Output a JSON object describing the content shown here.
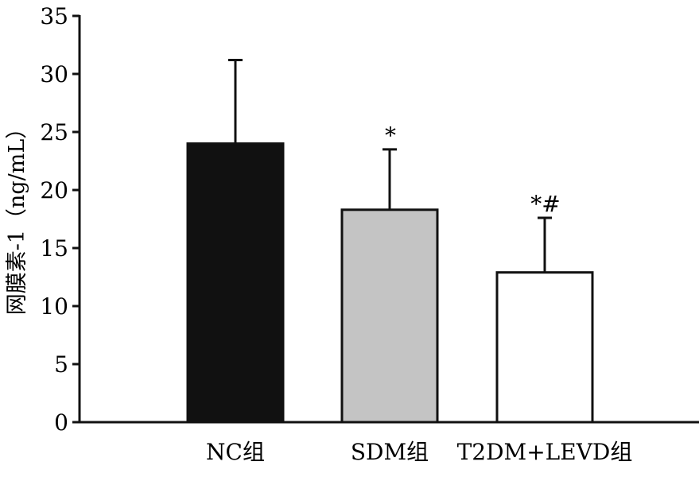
{
  "chart_data": {
    "type": "bar",
    "ylabel": "网膜素-1（ng/mL）",
    "categories": [
      "NC组",
      "SDM组",
      "T2DM+LEVD组"
    ],
    "values": [
      24.0,
      18.3,
      12.9
    ],
    "error": [
      7.2,
      5.2,
      4.7
    ],
    "annotations": [
      "",
      "*",
      "*#"
    ],
    "ylim": [
      0,
      35
    ],
    "yticks": [
      0,
      5,
      10,
      15,
      20,
      25,
      30,
      35
    ],
    "grid": false,
    "legend": "none",
    "colors": [
      "#111111",
      "#c4c4c4",
      "#ffffff"
    ],
    "bar_edge_color": "#111111"
  }
}
